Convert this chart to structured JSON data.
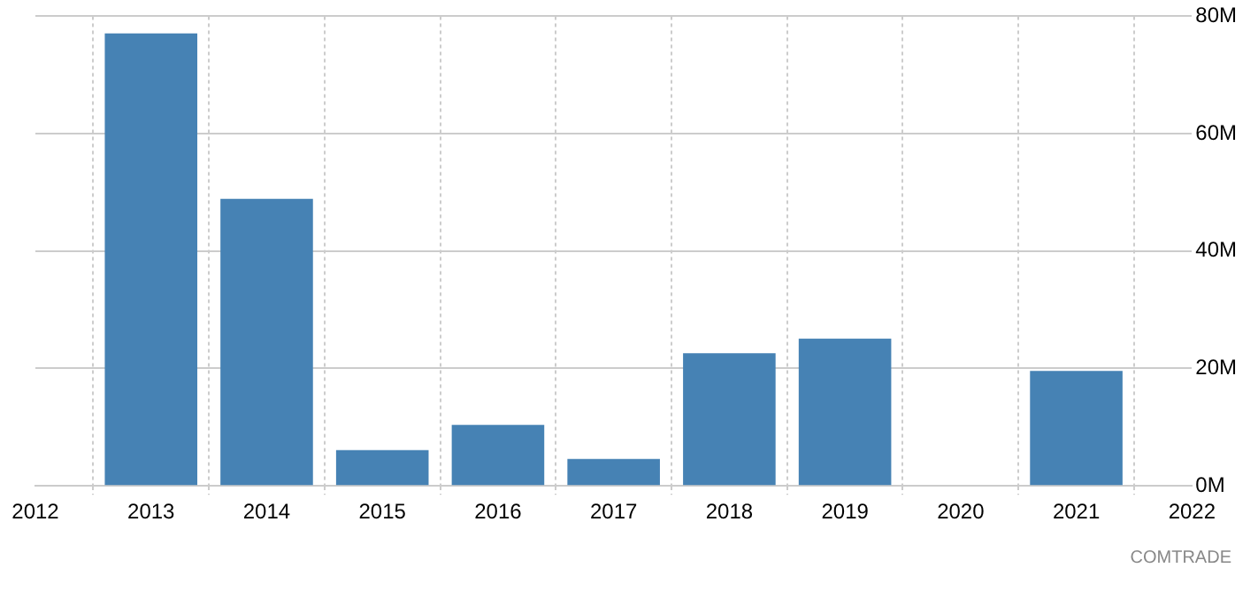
{
  "chart_data": {
    "type": "bar",
    "x": [
      2013,
      2014,
      2015,
      2016,
      2017,
      2018,
      2019,
      2020,
      2021
    ],
    "values": [
      77.1,
      48.9,
      6.1,
      10.4,
      4.6,
      22.6,
      25.1,
      null,
      19.6
    ],
    "color": "#4682b4",
    "xlim": [
      2012,
      2022
    ],
    "xticks": [
      2012,
      2013,
      2014,
      2015,
      2016,
      2017,
      2018,
      2019,
      2020,
      2021,
      2022
    ],
    "ylim": [
      0,
      80
    ],
    "yticks": [
      {
        "value": 0,
        "label": "0M"
      },
      {
        "value": 20,
        "label": "20M"
      },
      {
        "value": 40,
        "label": "40M"
      },
      {
        "value": 60,
        "label": "60M"
      },
      {
        "value": 80,
        "label": "80M"
      }
    ],
    "grid": true,
    "annotations": [
      "COMTRADE"
    ]
  }
}
